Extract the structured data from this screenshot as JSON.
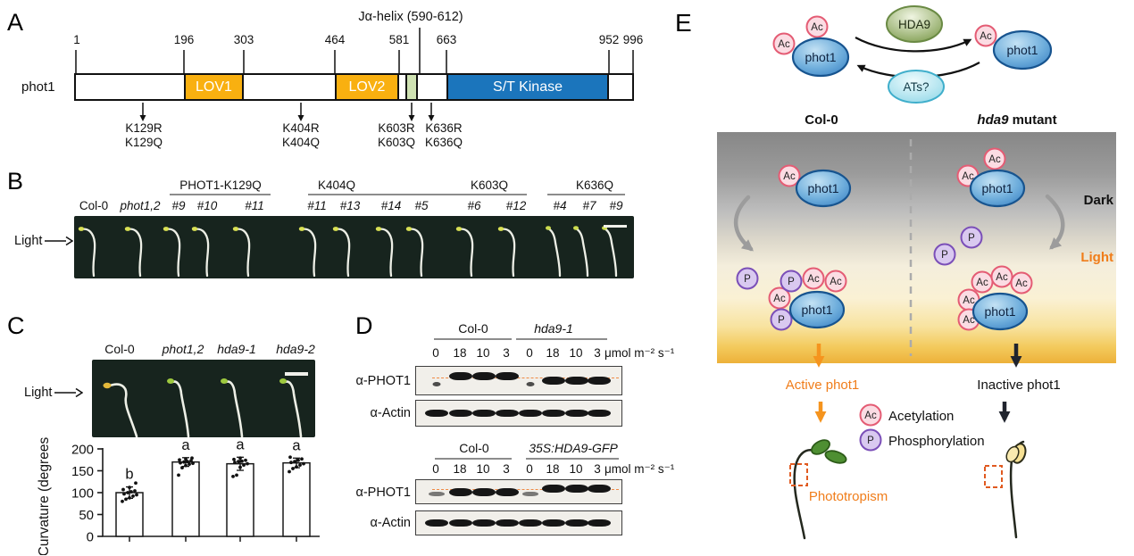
{
  "figure": {
    "panel_letters": {
      "a": "A",
      "b": "B",
      "c": "C",
      "d": "D",
      "e": "E"
    }
  },
  "panel_a": {
    "protein_label": "phot1",
    "ja_helix_label": "Jα-helix (590-612)",
    "positions": [
      "1",
      "196",
      "303",
      "464",
      "581",
      "663",
      "952",
      "996"
    ],
    "domains": {
      "lov1": "LOV1",
      "lov2": "LOV2",
      "kinase": "S/T Kinase"
    },
    "mutations": [
      {
        "r": "K129R",
        "q": "K129Q"
      },
      {
        "r": "K404R",
        "q": "K404Q"
      },
      {
        "r": "K603R",
        "q": "K603Q"
      },
      {
        "r": "K636R",
        "q": "K636Q"
      }
    ]
  },
  "panel_b": {
    "light_label": "Light",
    "controls": [
      "Col-0",
      "phot1,2"
    ],
    "groups": [
      {
        "name": "PHOT1-K129Q",
        "lines": [
          "#9",
          "#10",
          "#11"
        ]
      },
      {
        "name": "K404Q",
        "lines": [
          "#11",
          "#13",
          "#14"
        ]
      },
      {
        "name": "K603Q",
        "lines": [
          "#5",
          "#6",
          "#12"
        ]
      },
      {
        "name": "K636Q",
        "lines": [
          "#4",
          "#7",
          "#9"
        ]
      }
    ]
  },
  "panel_c": {
    "light_label": "Light",
    "genotypes": [
      "Col-0",
      "phot1,2",
      "hda9-1",
      "hda9-2"
    ]
  },
  "chart_data": {
    "type": "bar",
    "title": "",
    "xlabel": "",
    "ylabel": "Curvature (degrees)",
    "categories": [
      "Col-0",
      "phot1,2",
      "hda9-1",
      "hda9-2"
    ],
    "values": [
      100,
      170,
      166,
      168
    ],
    "error": [
      13,
      10,
      15,
      11
    ],
    "sig_letters": [
      "b",
      "a",
      "a",
      "a"
    ],
    "points": [
      [
        80,
        85,
        88,
        92,
        95,
        97,
        100,
        102,
        104,
        107,
        112,
        122
      ],
      [
        140,
        157,
        162,
        165,
        167,
        168,
        170,
        171,
        173,
        175,
        177,
        179
      ],
      [
        137,
        140,
        158,
        163,
        166,
        169,
        171,
        172,
        174,
        176,
        179
      ],
      [
        148,
        155,
        159,
        163,
        166,
        169,
        171,
        174,
        177,
        181
      ]
    ],
    "ylim": [
      0,
      200
    ],
    "yticks": [
      0,
      50,
      100,
      150,
      200
    ],
    "grid": false,
    "legend": false
  },
  "panel_d": {
    "sets": [
      {
        "group1": "Col-0",
        "group2": "hda9-1",
        "doses": [
          "0",
          "18",
          "10",
          "3",
          "0",
          "18",
          "10",
          "3"
        ],
        "unit": "μmol m⁻² s⁻¹",
        "antibody1": "α-PHOT1",
        "antibody2": "α-Actin"
      },
      {
        "group1": "Col-0",
        "group2": "35S:HDA9-GFP",
        "doses": [
          "0",
          "18",
          "10",
          "3",
          "0",
          "18",
          "10",
          "3"
        ],
        "unit": "μmol m⁻² s⁻¹",
        "antibody1": "α-PHOT1",
        "antibody2": "α-Actin"
      }
    ],
    "blots": [
      {
        "dashed": true,
        "bands": [
          "faint-dot",
          "strong-high",
          "strong-high",
          "strong-high",
          "faint-dot",
          "strong-low",
          "strong-low",
          "strong-low"
        ]
      },
      {
        "dashed": false,
        "bands": [
          "uniform",
          "uniform",
          "uniform",
          "uniform",
          "uniform",
          "uniform",
          "uniform",
          "uniform"
        ]
      },
      {
        "dashed": true,
        "bands": [
          "gray-low",
          "strong-low",
          "strong-low",
          "strong-low",
          "gray-low",
          "strong-high",
          "strong-high",
          "strong-high"
        ]
      },
      {
        "dashed": false,
        "bands": [
          "uniform",
          "uniform",
          "uniform",
          "uniform",
          "uniform",
          "uniform",
          "uniform",
          "uniform"
        ]
      }
    ]
  },
  "panel_e": {
    "ac": "Ac",
    "p": "P",
    "phot1": "phot1",
    "hda9": "HDA9",
    "ats": "ATs?",
    "col0": "Col-0",
    "hda9_italic": "hda9",
    "mutant_rest": " mutant",
    "dark": "Dark",
    "light": "Light",
    "active": "Active phot1",
    "inactive": "Inactive phot1",
    "acetylation": "Acetylation",
    "phosphorylation": "Phosphorylation",
    "phototropism": "Phototropism"
  },
  "colors": {
    "lov_orange": "#F9B010",
    "kinase_blue": "#1B75BC",
    "ja_green": "#CFE2B2",
    "accent_orange": "#F07D1A",
    "ac_pink": "#FBDCE3",
    "ac_border": "#E45C74",
    "p_purple": "#D9C9F0",
    "p_border": "#7B4FB8",
    "phot1_blue": "#58A0D8",
    "hda9_green": "#7E9C4E",
    "ats_cyan": "#92D8E8",
    "blot_dash": "#F08033"
  }
}
